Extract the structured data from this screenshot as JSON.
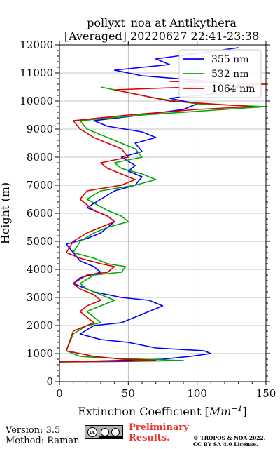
{
  "chart_data": {
    "type": "line",
    "title": "pollyxt_noa at Antikythera",
    "subtitle": "[Averaged] 20220627 22:41-23:38",
    "xlabel": "Extinction Coefficient [",
    "xlabel_unit": "Mm",
    "xlabel_exp": "−1",
    "xlabel_close": "]",
    "ylabel": "Height (m)",
    "xlim": [
      0,
      150
    ],
    "ylim": [
      0,
      12000
    ],
    "xticks": [
      0,
      50,
      100,
      150
    ],
    "yticks": [
      0,
      1000,
      2000,
      3000,
      4000,
      5000,
      6000,
      7000,
      8000,
      9000,
      10000,
      11000,
      12000
    ],
    "grid": true,
    "legend_position": "top-right",
    "series": [
      {
        "name": "355 nm",
        "color": "#0000ff",
        "points": [
          [
            0,
            700
          ],
          [
            40,
            750
          ],
          [
            75,
            800
          ],
          [
            95,
            900
          ],
          [
            110,
            1000
          ],
          [
            105,
            1100
          ],
          [
            70,
            1200
          ],
          [
            50,
            1400
          ],
          [
            30,
            1500
          ],
          [
            15,
            1700
          ],
          [
            25,
            2000
          ],
          [
            45,
            2100
          ],
          [
            55,
            2300
          ],
          [
            65,
            2500
          ],
          [
            75,
            2700
          ],
          [
            65,
            2900
          ],
          [
            45,
            3000
          ],
          [
            25,
            3200
          ],
          [
            10,
            3500
          ],
          [
            15,
            3700
          ],
          [
            30,
            3900
          ],
          [
            25,
            4100
          ],
          [
            15,
            4300
          ],
          [
            10,
            4600
          ],
          [
            5,
            4900
          ],
          [
            20,
            5100
          ],
          [
            30,
            5300
          ],
          [
            35,
            5500
          ],
          [
            40,
            5700
          ],
          [
            35,
            5900
          ],
          [
            20,
            6200
          ],
          [
            30,
            6500
          ],
          [
            40,
            6800
          ],
          [
            55,
            7000
          ],
          [
            60,
            7300
          ],
          [
            50,
            7500
          ],
          [
            55,
            7700
          ],
          [
            45,
            8000
          ],
          [
            60,
            8200
          ],
          [
            55,
            8500
          ],
          [
            70,
            8700
          ],
          [
            60,
            8900
          ],
          [
            35,
            9100
          ],
          [
            25,
            9300
          ],
          [
            60,
            9500
          ],
          [
            90,
            9700
          ],
          [
            100,
            9900
          ],
          [
            80,
            10100
          ],
          [
            120,
            10300
          ],
          [
            130,
            10500
          ],
          [
            110,
            10700
          ],
          [
            60,
            10900
          ],
          [
            40,
            11100
          ],
          [
            80,
            11300
          ],
          [
            70,
            11500
          ],
          [
            100,
            11700
          ],
          [
            130,
            11900
          ]
        ]
      },
      {
        "name": "532 nm",
        "color": "#00aa00",
        "points": [
          [
            0,
            700
          ],
          [
            50,
            720
          ],
          [
            90,
            750
          ],
          [
            60,
            800
          ],
          [
            30,
            850
          ],
          [
            15,
            900
          ],
          [
            10,
            1000
          ],
          [
            5,
            1100
          ],
          [
            10,
            1700
          ],
          [
            20,
            2000
          ],
          [
            30,
            2100
          ],
          [
            25,
            2300
          ],
          [
            20,
            2500
          ],
          [
            30,
            2700
          ],
          [
            40,
            2900
          ],
          [
            30,
            3100
          ],
          [
            20,
            3300
          ],
          [
            15,
            3500
          ],
          [
            25,
            3800
          ],
          [
            45,
            3900
          ],
          [
            48,
            4100
          ],
          [
            35,
            4200
          ],
          [
            25,
            4400
          ],
          [
            10,
            4600
          ],
          [
            15,
            5000
          ],
          [
            25,
            5300
          ],
          [
            35,
            5500
          ],
          [
            50,
            5700
          ],
          [
            45,
            5900
          ],
          [
            35,
            6100
          ],
          [
            20,
            6500
          ],
          [
            30,
            6800
          ],
          [
            55,
            7000
          ],
          [
            70,
            7200
          ],
          [
            60,
            7400
          ],
          [
            45,
            7600
          ],
          [
            40,
            7800
          ],
          [
            60,
            8000
          ],
          [
            55,
            8300
          ],
          [
            45,
            8500
          ],
          [
            35,
            8700
          ],
          [
            20,
            9000
          ],
          [
            15,
            9300
          ],
          [
            60,
            9500
          ],
          [
            120,
            9700
          ],
          [
            150,
            9800
          ],
          [
            100,
            9900
          ],
          [
            70,
            10100
          ],
          [
            50,
            10300
          ],
          [
            30,
            10500
          ]
        ]
      },
      {
        "name": "1064 nm",
        "color": "#dd0000",
        "points": [
          [
            0,
            700
          ],
          [
            45,
            720
          ],
          [
            70,
            760
          ],
          [
            45,
            800
          ],
          [
            25,
            900
          ],
          [
            15,
            1000
          ],
          [
            5,
            1100
          ],
          [
            10,
            1800
          ],
          [
            20,
            2000
          ],
          [
            25,
            2100
          ],
          [
            20,
            2300
          ],
          [
            15,
            2500
          ],
          [
            20,
            2700
          ],
          [
            30,
            2900
          ],
          [
            25,
            3100
          ],
          [
            15,
            3300
          ],
          [
            10,
            3500
          ],
          [
            20,
            3800
          ],
          [
            35,
            3900
          ],
          [
            40,
            4100
          ],
          [
            30,
            4200
          ],
          [
            15,
            4400
          ],
          [
            5,
            4600
          ],
          [
            10,
            5000
          ],
          [
            20,
            5300
          ],
          [
            30,
            5500
          ],
          [
            40,
            5700
          ],
          [
            35,
            5900
          ],
          [
            25,
            6100
          ],
          [
            15,
            6500
          ],
          [
            20,
            6800
          ],
          [
            45,
            7000
          ],
          [
            55,
            7200
          ],
          [
            45,
            7400
          ],
          [
            35,
            7600
          ],
          [
            30,
            7800
          ],
          [
            50,
            8000
          ],
          [
            45,
            8300
          ],
          [
            35,
            8500
          ],
          [
            25,
            8700
          ],
          [
            15,
            9000
          ],
          [
            10,
            9300
          ],
          [
            50,
            9500
          ],
          [
            100,
            9700
          ],
          [
            140,
            9800
          ],
          [
            110,
            9900
          ],
          [
            80,
            10000
          ],
          [
            60,
            10200
          ],
          [
            40,
            10400
          ],
          [
            150,
            10600
          ],
          [
            80,
            10700
          ]
        ]
      }
    ]
  },
  "footer": {
    "version": "Version: 3.5",
    "method": "Method: Raman",
    "preliminary_line1": "Preliminary",
    "preliminary_line2": "Results.",
    "copyright_line1": "© TROPOS & NOA 2022.",
    "copyright_line2": "CC BY SA 4.0 License."
  },
  "license_icon": "cc-by-sa-badge"
}
